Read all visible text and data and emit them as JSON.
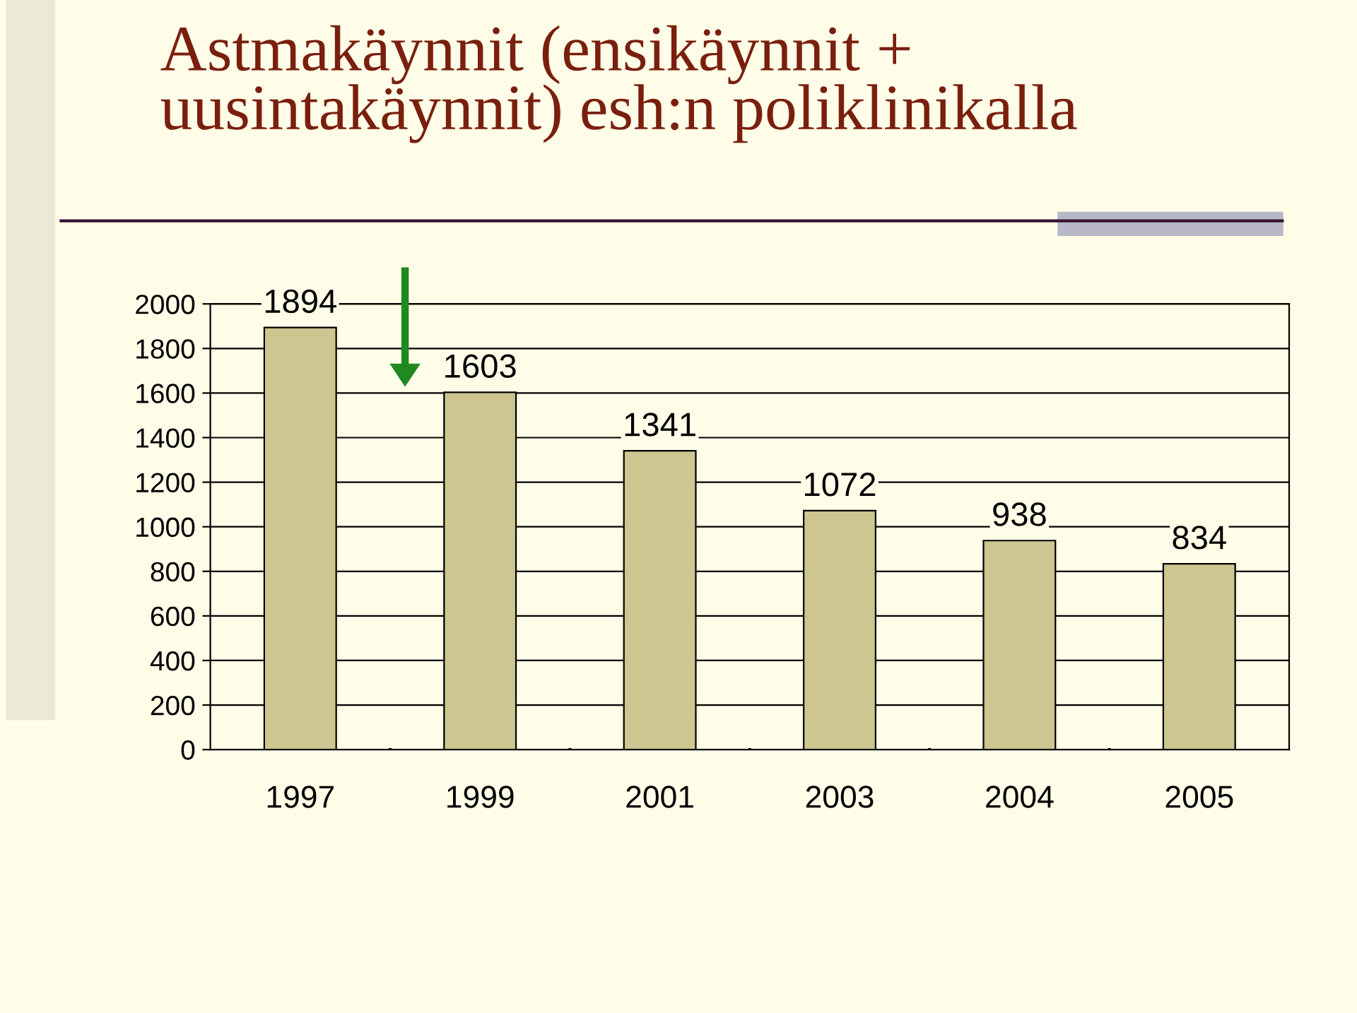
{
  "chart_data": {
    "type": "bar",
    "title": "Astmakäynnit (ensikäynnit +\nuusintakäynnit) esh:n poliklinikalla",
    "categories": [
      "1997",
      "1999",
      "2001",
      "2003",
      "2004",
      "2005"
    ],
    "values": [
      1894,
      1603,
      1341,
      1072,
      938,
      834
    ],
    "color": "#cdc690",
    "ylim": [
      0,
      2000
    ],
    "yticks": [
      0,
      200,
      400,
      600,
      800,
      1000,
      1200,
      1400,
      1600,
      1800,
      2000
    ],
    "grid": "y",
    "data_labels": true
  }
}
